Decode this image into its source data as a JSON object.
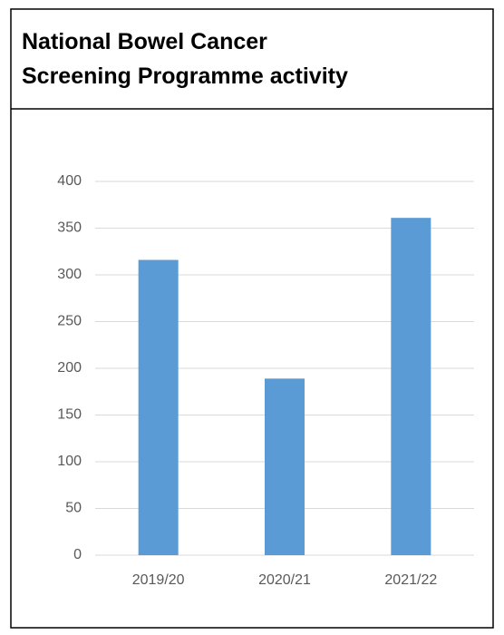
{
  "chart_data": {
    "type": "bar",
    "title": [
      "National Bowel Cancer",
      "Screening Programme activity"
    ],
    "categories": [
      "2019/20",
      "2020/21",
      "2021/22"
    ],
    "values": [
      316,
      189,
      361
    ],
    "color": "#5b9bd5",
    "ylim": [
      0,
      400
    ],
    "yticks": [
      0,
      50,
      100,
      150,
      200,
      250,
      300,
      350,
      400
    ],
    "grid": true
  }
}
